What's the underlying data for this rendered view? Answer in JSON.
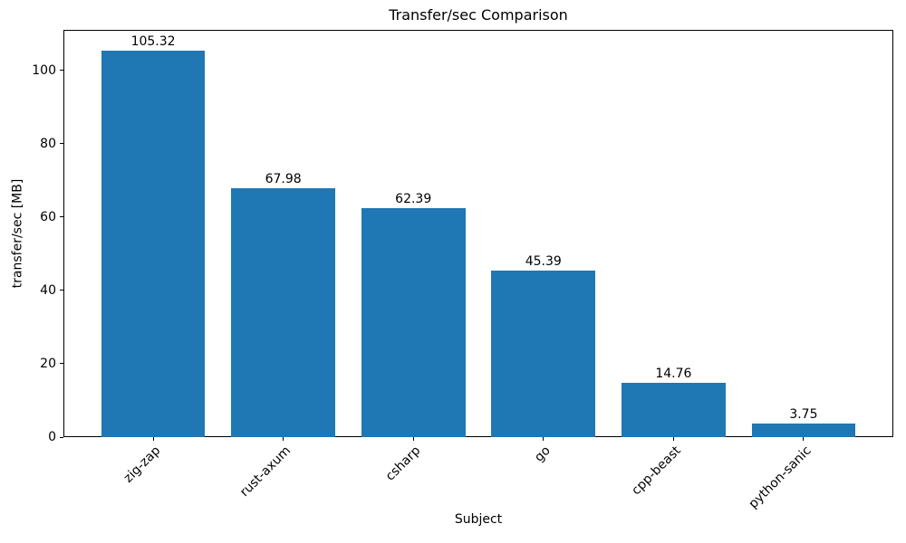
{
  "figure": {
    "title": "Transfer/sec Comparison"
  },
  "chart_data": {
    "type": "bar",
    "title": "Transfer/sec Comparison",
    "categories": [
      "zig-zap",
      "rust-axum",
      "csharp",
      "go",
      "cpp-beast",
      "python-sanic"
    ],
    "values": [
      105.32,
      67.98,
      62.39,
      45.39,
      14.76,
      3.75
    ],
    "bar_value_labels": [
      "105.32",
      "67.98",
      "62.39",
      "45.39",
      "14.76",
      "3.75"
    ],
    "xlabel": "Subject",
    "ylabel": "transfer/sec [MB]",
    "yticks": [
      0,
      20,
      40,
      60,
      80,
      100
    ],
    "ytick_labels": [
      "0",
      "20",
      "40",
      "60",
      "80",
      "100"
    ],
    "ylim": [
      0,
      111.1
    ],
    "x_tick_rotation_deg": 45,
    "bar_color": "#1f77b4",
    "axis_color": "#000000",
    "text_color": "#000000",
    "background_color": "#ffffff",
    "grid": false,
    "legend": false
  }
}
